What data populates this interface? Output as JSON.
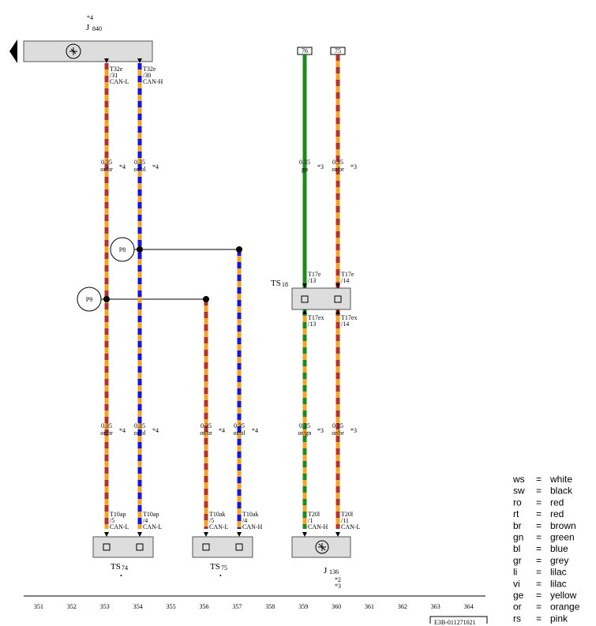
{
  "top_component": {
    "note": "*4",
    "name": "J",
    "index": "840"
  },
  "pins": [
    [
      "T32e",
      "/31",
      "CAN-L"
    ],
    [
      "T32e",
      "/30",
      "CAN-H"
    ],
    [
      "T17e",
      "/13"
    ],
    [
      "T17e",
      "/14"
    ],
    [
      "T17ex",
      "/13"
    ],
    [
      "T17ex",
      "/14"
    ],
    [
      "T10ap",
      "/5",
      "CAN-L"
    ],
    [
      "T10ap",
      "/4",
      "CAN-L"
    ],
    [
      "T10ak",
      "/5",
      "CAN-L"
    ],
    [
      "T10ak",
      "/4",
      "CAN-H"
    ],
    [
      "T20l",
      "/1",
      "CAN-H"
    ],
    [
      "T20l",
      "/11",
      "CAN-L"
    ]
  ],
  "wire_specs": [
    [
      "0.35",
      "or/br",
      "*4"
    ],
    [
      "0.35",
      "or/bl",
      "*4"
    ],
    [
      "0.35",
      "gn",
      "*3"
    ],
    [
      "0.35",
      "or/br",
      "*3"
    ],
    [
      "0.35",
      "or/br",
      "*4"
    ],
    [
      "0.35",
      "or/bl",
      "*4"
    ],
    [
      "0.35",
      "or/br",
      "*4"
    ],
    [
      "0.35",
      "or/bl",
      "*4"
    ],
    [
      "0.35",
      "or/gn",
      "*3"
    ],
    [
      "0.35",
      "or/br",
      "*3"
    ]
  ],
  "splices": [
    "P8",
    "P9"
  ],
  "terminals": [
    "76",
    "75"
  ],
  "connectors": [
    {
      "name": "TS",
      "index": "74",
      "notes": [
        "•"
      ]
    },
    {
      "name": "TS",
      "index": "75",
      "notes": [
        "•"
      ]
    },
    {
      "name": "TS",
      "index": "18",
      "notes": []
    },
    {
      "name": "J",
      "index": "136",
      "notes": [
        "*2",
        "*3"
      ]
    }
  ],
  "legend": [
    [
      "ws",
      "=",
      "white"
    ],
    [
      "sw",
      "=",
      "black"
    ],
    [
      "ro",
      "=",
      "red"
    ],
    [
      "rt",
      "=",
      "red"
    ],
    [
      "br",
      "=",
      "brown"
    ],
    [
      "gn",
      "=",
      "green"
    ],
    [
      "bl",
      "=",
      "blue"
    ],
    [
      "gr",
      "=",
      "grey"
    ],
    [
      "li",
      "=",
      "lilac"
    ],
    [
      "vi",
      "=",
      "lilac"
    ],
    [
      "ge",
      "=",
      "yellow"
    ],
    [
      "or",
      "=",
      "orange"
    ],
    [
      "rs",
      "=",
      "pink"
    ]
  ],
  "grid_numbers": [
    "351",
    "352",
    "353",
    "354",
    "355",
    "356",
    "357",
    "358",
    "359",
    "360",
    "361",
    "362",
    "363",
    "364"
  ],
  "footer_code": "E3B-011271021"
}
